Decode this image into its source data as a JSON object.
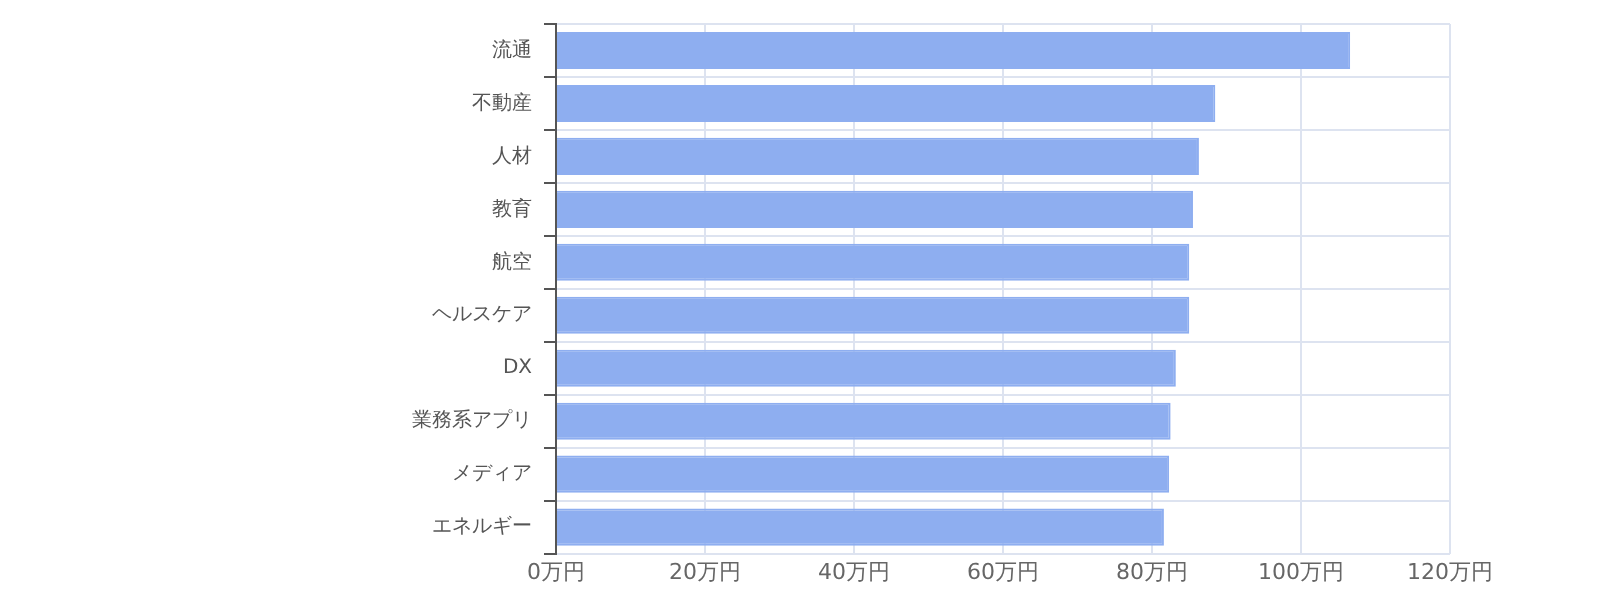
{
  "chart_data": {
    "type": "bar",
    "orientation": "horizontal",
    "categories": [
      "流通",
      "不動産",
      "人材",
      "教育",
      "航空",
      "ヘルスケア",
      "DX",
      "業務系アプリ",
      "メディア",
      "エネルギー"
    ],
    "values": [
      106.6,
      88.5,
      86.3,
      85.5,
      85,
      85,
      83.2,
      82.5,
      82.3,
      81.6
    ],
    "color": "#8eaef0",
    "xlim": [
      0,
      120
    ],
    "xticks": [
      {
        "value": 0,
        "label": "0万円"
      },
      {
        "value": 20,
        "label": "20万円"
      },
      {
        "value": 40,
        "label": "40万円"
      },
      {
        "value": 60,
        "label": "60万円"
      },
      {
        "value": 80,
        "label": "80万円"
      },
      {
        "value": 100,
        "label": "100万円"
      },
      {
        "value": 120,
        "label": "120万円"
      }
    ],
    "grid": true
  }
}
